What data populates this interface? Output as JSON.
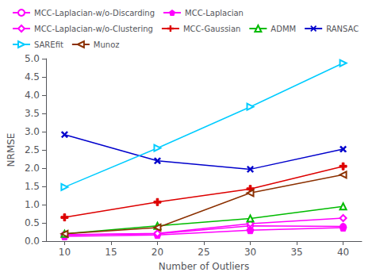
{
  "chart_data": {
    "type": "line",
    "x": [
      10,
      20,
      30,
      40
    ],
    "series": [
      {
        "name": "MCC-Laplacian-w/o-Discarding",
        "color": "#FF00FF",
        "marker": "open-circle",
        "values": [
          0.18,
          0.2,
          0.42,
          0.4
        ]
      },
      {
        "name": "MCC-Laplacian",
        "color": "#FF00FF",
        "marker": "pentagon",
        "values": [
          0.13,
          0.17,
          0.3,
          0.37
        ]
      },
      {
        "name": "MCC-Laplacian-w/o-Clustering",
        "color": "#FF00FF",
        "marker": "open-diamond",
        "values": [
          0.17,
          0.21,
          0.48,
          0.63
        ]
      },
      {
        "name": "MCC-Gaussian",
        "color": "#DD0000",
        "marker": "plus",
        "values": [
          0.65,
          1.07,
          1.43,
          2.05
        ]
      },
      {
        "name": "ADMM",
        "color": "#00BB00",
        "marker": "open-triangle-up",
        "values": [
          0.2,
          0.42,
          0.62,
          0.95
        ]
      },
      {
        "name": "RANSAC",
        "color": "#0000CC",
        "marker": "x",
        "values": [
          2.92,
          2.2,
          1.97,
          2.52
        ]
      },
      {
        "name": "SAREfit",
        "color": "#00CCFF",
        "marker": "open-triangle-right",
        "values": [
          1.48,
          2.55,
          3.68,
          4.88
        ]
      },
      {
        "name": "Munoz",
        "color": "#8B3000",
        "marker": "open-triangle-left",
        "values": [
          0.2,
          0.37,
          1.32,
          1.82
        ]
      }
    ],
    "x_label": "Number of Outliers",
    "y_label": "NRMSE",
    "xlim": [
      8,
      42
    ],
    "ylim": [
      0,
      5
    ],
    "xticks": [
      10,
      15,
      20,
      25,
      30,
      35,
      40
    ],
    "yticks": [
      {
        "value": 0,
        "label": "0.0"
      },
      0.5,
      {
        "value": 1.0,
        "label": "1.0"
      },
      1.5,
      {
        "value": 2.0,
        "label": "2.0"
      },
      2.5,
      {
        "value": 3.0,
        "label": "3.0"
      },
      3.5,
      {
        "value": 4.0,
        "label": "4.0"
      },
      4.5,
      {
        "value": 5.0,
        "label": "5.0"
      }
    ],
    "grid": false,
    "legend": "upper left"
  }
}
